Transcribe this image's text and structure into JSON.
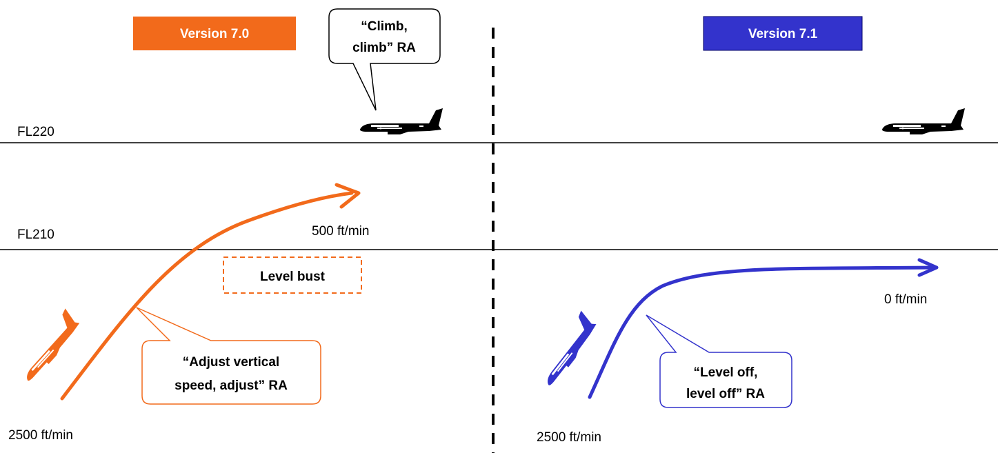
{
  "colors": {
    "orange": "#F26A1B",
    "blue": "#3333CC",
    "black": "#000000"
  },
  "flight_levels": {
    "upper": "FL220",
    "lower": "FL210"
  },
  "left_panel": {
    "version_label": "Version 7.0",
    "intruder_callout": [
      "“Climb,",
      "climb” RA"
    ],
    "start_rate": "2500 ft/min",
    "end_rate": "500 ft/min",
    "level_bust_label": "Level bust",
    "ra_callout": [
      "“Adjust vertical",
      "speed, adjust” RA"
    ]
  },
  "right_panel": {
    "version_label": "Version 7.1",
    "start_rate": "2500 ft/min",
    "end_rate": "0 ft/min",
    "ra_callout": [
      "“Level off,",
      "level off” RA"
    ]
  },
  "icons": {
    "intruder_aircraft": "aircraft-level-icon",
    "climbing_aircraft": "aircraft-climbing-icon"
  }
}
